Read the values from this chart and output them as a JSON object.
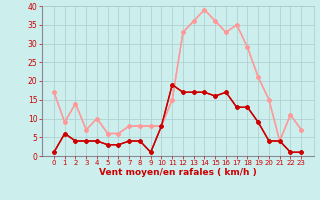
{
  "hours": [
    0,
    1,
    2,
    3,
    4,
    5,
    6,
    7,
    8,
    9,
    10,
    11,
    12,
    13,
    14,
    15,
    16,
    17,
    18,
    19,
    20,
    21,
    22,
    23
  ],
  "wind_mean": [
    1,
    6,
    4,
    4,
    4,
    3,
    3,
    4,
    4,
    1,
    8,
    19,
    17,
    17,
    17,
    16,
    17,
    13,
    13,
    9,
    4,
    4,
    1,
    1
  ],
  "wind_gust": [
    17,
    9,
    14,
    7,
    10,
    6,
    6,
    8,
    8,
    8,
    8,
    15,
    33,
    36,
    39,
    36,
    33,
    35,
    29,
    21,
    15,
    4,
    11,
    7
  ],
  "bg_color": "#cceeed",
  "grid_color": "#aacccc",
  "mean_color": "#cc0000",
  "gust_color": "#ff9999",
  "xlabel": "Vent moyen/en rafales ( km/h )",
  "xlabel_color": "#cc0000",
  "tick_color": "#cc0000",
  "ylim": [
    0,
    40
  ],
  "yticks": [
    0,
    5,
    10,
    15,
    20,
    25,
    30,
    35,
    40
  ]
}
